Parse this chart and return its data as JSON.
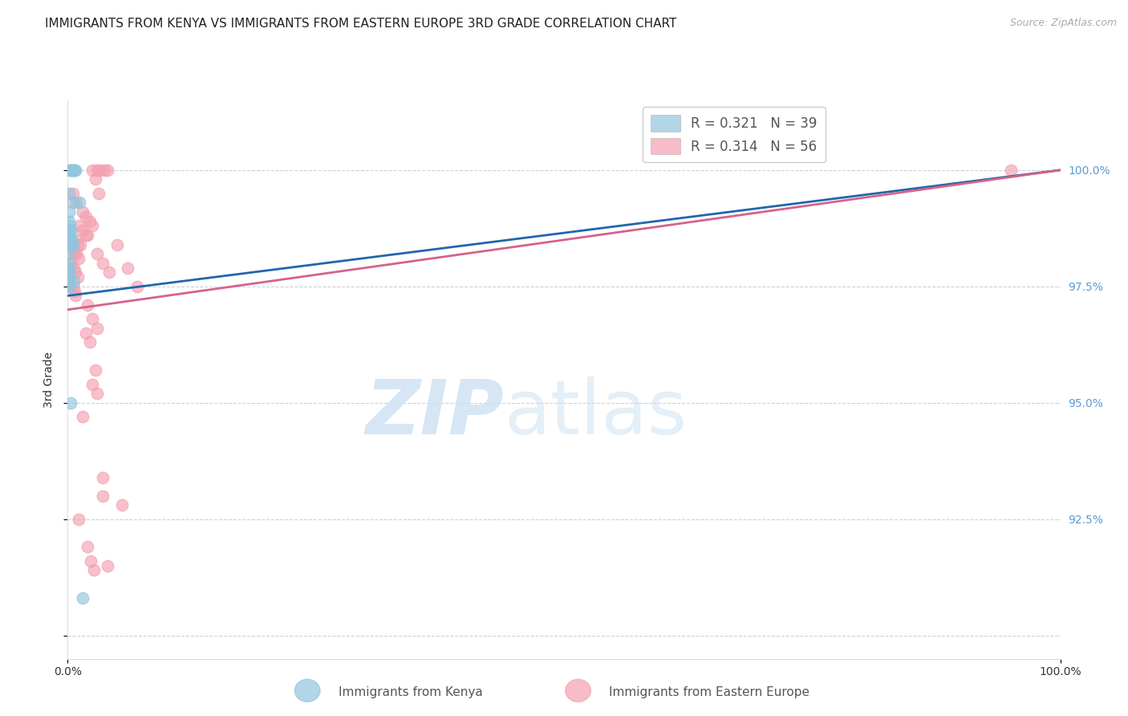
{
  "title": "IMMIGRANTS FROM KENYA VS IMMIGRANTS FROM EASTERN EUROPE 3RD GRADE CORRELATION CHART",
  "source": "Source: ZipAtlas.com",
  "ylabel": "3rd Grade",
  "yticks": [
    90.0,
    92.5,
    95.0,
    97.5,
    100.0
  ],
  "ytick_labels": [
    "",
    "92.5%",
    "95.0%",
    "97.5%",
    "100.0%"
  ],
  "xlim": [
    0.0,
    100.0
  ],
  "ylim": [
    89.5,
    101.5
  ],
  "kenya_color": "#92c5de",
  "eastern_europe_color": "#f4a0b0",
  "kenya_scatter": [
    [
      0.2,
      100.0
    ],
    [
      0.3,
      100.0
    ],
    [
      0.4,
      100.0
    ],
    [
      0.5,
      100.0
    ],
    [
      0.6,
      100.0
    ],
    [
      0.7,
      100.0
    ],
    [
      0.75,
      100.0
    ],
    [
      0.55,
      99.3
    ],
    [
      1.2,
      99.3
    ],
    [
      0.1,
      99.5
    ],
    [
      0.12,
      99.1
    ],
    [
      0.14,
      98.9
    ],
    [
      0.16,
      98.7
    ],
    [
      0.2,
      98.8
    ],
    [
      0.22,
      98.6
    ],
    [
      0.24,
      98.5
    ],
    [
      0.26,
      98.4
    ],
    [
      0.3,
      98.7
    ],
    [
      0.32,
      98.5
    ],
    [
      0.4,
      98.5
    ],
    [
      0.5,
      98.4
    ],
    [
      0.05,
      98.2
    ],
    [
      0.06,
      98.0
    ],
    [
      0.07,
      97.8
    ],
    [
      0.08,
      97.6
    ],
    [
      0.1,
      97.9
    ],
    [
      0.11,
      97.7
    ],
    [
      0.12,
      97.5
    ],
    [
      0.15,
      97.8
    ],
    [
      0.16,
      97.5
    ],
    [
      0.6,
      97.6
    ],
    [
      0.28,
      95.0
    ],
    [
      1.5,
      90.8
    ]
  ],
  "eastern_europe_scatter": [
    [
      2.5,
      100.0
    ],
    [
      3.0,
      100.0
    ],
    [
      3.2,
      100.0
    ],
    [
      3.7,
      100.0
    ],
    [
      4.0,
      100.0
    ],
    [
      2.8,
      99.8
    ],
    [
      3.1,
      99.5
    ],
    [
      0.5,
      99.5
    ],
    [
      0.9,
      99.3
    ],
    [
      1.5,
      99.1
    ],
    [
      1.8,
      99.0
    ],
    [
      2.2,
      98.9
    ],
    [
      2.5,
      98.8
    ],
    [
      1.2,
      98.8
    ],
    [
      1.5,
      98.7
    ],
    [
      1.8,
      98.6
    ],
    [
      2.0,
      98.6
    ],
    [
      0.8,
      98.5
    ],
    [
      1.0,
      98.4
    ],
    [
      1.3,
      98.4
    ],
    [
      0.5,
      98.3
    ],
    [
      0.7,
      98.2
    ],
    [
      0.9,
      98.2
    ],
    [
      1.1,
      98.1
    ],
    [
      0.4,
      98.0
    ],
    [
      0.6,
      97.9
    ],
    [
      0.8,
      97.8
    ],
    [
      1.0,
      97.7
    ],
    [
      0.5,
      97.5
    ],
    [
      0.7,
      97.4
    ],
    [
      0.8,
      97.3
    ],
    [
      3.0,
      98.2
    ],
    [
      3.5,
      98.0
    ],
    [
      4.2,
      97.8
    ],
    [
      5.0,
      98.4
    ],
    [
      6.0,
      97.9
    ],
    [
      7.0,
      97.5
    ],
    [
      2.0,
      97.1
    ],
    [
      2.5,
      96.8
    ],
    [
      3.0,
      96.6
    ],
    [
      1.8,
      96.5
    ],
    [
      2.2,
      96.3
    ],
    [
      2.8,
      95.7
    ],
    [
      2.5,
      95.4
    ],
    [
      3.0,
      95.2
    ],
    [
      1.5,
      94.7
    ],
    [
      3.5,
      93.0
    ],
    [
      1.1,
      92.5
    ],
    [
      2.0,
      91.9
    ],
    [
      2.3,
      91.6
    ],
    [
      2.6,
      91.4
    ],
    [
      3.5,
      93.4
    ],
    [
      5.5,
      92.8
    ],
    [
      4.0,
      91.5
    ],
    [
      95.0,
      100.0
    ]
  ],
  "kenya_line": [
    0.0,
    97.3,
    100.0,
    100.0
  ],
  "ee_line": [
    0.0,
    97.0,
    100.0,
    100.0
  ],
  "right_axis_color": "#5b9bd5",
  "title_fontsize": 11,
  "axis_label_fontsize": 10,
  "tick_fontsize": 10,
  "watermark_zip_color": "#cfe2f3",
  "watermark_atlas_color": "#cfe2f3"
}
